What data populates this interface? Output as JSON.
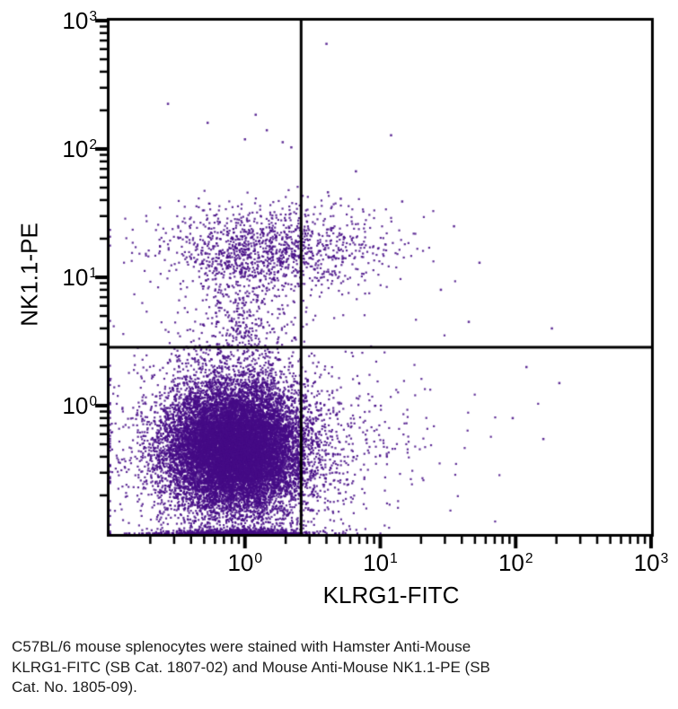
{
  "chart_data": {
    "type": "scatter",
    "title": "",
    "xlabel": "KLRG1-FITC",
    "ylabel": "NK1.1-PE",
    "x_scale": "log",
    "y_scale": "log",
    "x_range": [
      0.1,
      1000
    ],
    "y_range": [
      0.1,
      1000
    ],
    "x_ticks": [
      {
        "base": "10",
        "exp": "0",
        "value": 1
      },
      {
        "base": "10",
        "exp": "1",
        "value": 10
      },
      {
        "base": "10",
        "exp": "2",
        "value": 100
      },
      {
        "base": "10",
        "exp": "3",
        "value": 1000
      }
    ],
    "y_ticks": [
      {
        "base": "10",
        "exp": "0",
        "value": 1
      },
      {
        "base": "10",
        "exp": "1",
        "value": 10
      },
      {
        "base": "10",
        "exp": "2",
        "value": 100
      },
      {
        "base": "10",
        "exp": "3",
        "value": 1000
      }
    ],
    "minor_ticks": "log decades 2-9, outside, left and bottom only",
    "grid": false,
    "legend": "none",
    "background": "#FFFFFF",
    "axis_color": "#000000",
    "point_color": "#450C86",
    "quadrant_gate": {
      "x": 2.6,
      "y": 2.85
    },
    "populations": [
      {
        "name": "double-negative-core",
        "count": 13000,
        "center_log10": [
          -0.08,
          -0.33
        ],
        "sigma_log10": [
          0.25,
          0.24
        ],
        "seed": 11
      },
      {
        "name": "double-negative-wide",
        "count": 2600,
        "center_log10": [
          -0.06,
          -0.35
        ],
        "sigma_log10": [
          0.38,
          0.42
        ],
        "seed": 22
      },
      {
        "name": "bottom-edge-pileup",
        "count": 550,
        "center_log10": [
          -0.05,
          -0.99
        ],
        "sigma_log10": [
          0.25,
          0.015
        ],
        "seed": 33
      },
      {
        "name": "nk11-positive-band",
        "count": 1250,
        "center_log10": [
          0.18,
          1.21
        ],
        "sigma_log10": [
          0.42,
          0.17
        ],
        "seed": 44
      },
      {
        "name": "nk11-intermediate-smear",
        "count": 380,
        "center_log10": [
          -0.04,
          0.68
        ],
        "sigma_log10": [
          0.16,
          0.3
        ],
        "seed": 55
      },
      {
        "name": "klrg1-positive-tail",
        "count": 260,
        "center_log10": [
          0.72,
          -0.28
        ],
        "sigma_log10": [
          0.46,
          0.28
        ],
        "seed": 66
      },
      {
        "name": "sparse-halo",
        "count": 260,
        "center_log10": [
          -0.1,
          -0.3
        ],
        "sigma_log10": [
          0.55,
          0.5
        ],
        "seed": 77
      }
    ],
    "outlier_points": [
      [
        4,
        660
      ],
      [
        0.27,
        225
      ],
      [
        0.53,
        160
      ],
      [
        1.2,
        185
      ],
      [
        1.45,
        140
      ],
      [
        1.0,
        119
      ],
      [
        1.9,
        113
      ],
      [
        2.2,
        103
      ],
      [
        12,
        128
      ],
      [
        54,
        13
      ],
      [
        185,
        4.0
      ],
      [
        210,
        1.5
      ],
      [
        120,
        2.0
      ],
      [
        4.1,
        46
      ],
      [
        5.1,
        41
      ],
      [
        14.5,
        39
      ],
      [
        6.6,
        67
      ],
      [
        95,
        0.8
      ],
      [
        160,
        0.55
      ],
      [
        35,
        25
      ],
      [
        28,
        8
      ],
      [
        45,
        4.5
      ]
    ]
  },
  "caption": {
    "lines": [
      "C57BL/6 mouse splenocytes were stained with Hamster Anti-Mouse",
      "KLRG1-FITC (SB Cat. 1807-02) and Mouse Anti-Mouse NK1.1-PE (SB",
      "Cat. No. 1805-09)."
    ]
  }
}
